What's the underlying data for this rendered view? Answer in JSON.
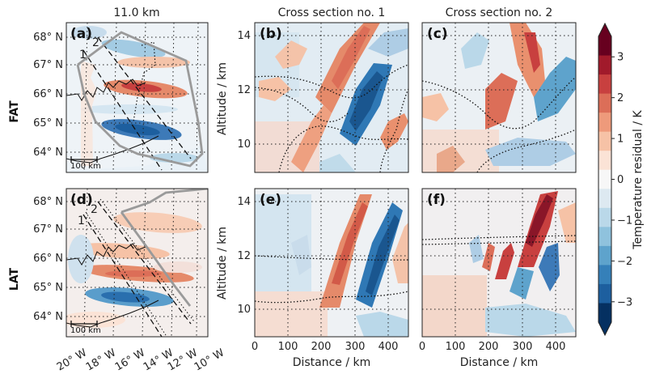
{
  "figure": {
    "top_title": "11.0 km",
    "row_labels": [
      "FAT",
      "LAT"
    ],
    "panel_letters": [
      "(a)",
      "(b)",
      "(c)",
      "(d)",
      "(e)",
      "(f)"
    ],
    "section_labels": [
      "1",
      "2"
    ],
    "scale_bar": "100 km"
  },
  "chart_data": [
    {
      "id": "map",
      "type": "heatmap",
      "lat_ticks": [
        "68° N",
        "67° N",
        "66° N",
        "65° N",
        "64° N"
      ],
      "lon_ticks": [
        "20° W",
        "18° W",
        "16° W",
        "14° W",
        "12° W",
        "10° W"
      ],
      "grid": true
    },
    {
      "id": "cross_section_1",
      "type": "heatmap",
      "title": "Cross section no. 1",
      "xlabel": "Distance / km",
      "ylabel": "Altitude / km",
      "xlim": [
        0,
        460
      ],
      "ylim": [
        9,
        14.4
      ],
      "x_ticks": [
        "0",
        "100",
        "200",
        "300",
        "400"
      ],
      "y_ticks": [
        "10",
        "12",
        "14"
      ],
      "grid": true
    },
    {
      "id": "cross_section_2",
      "type": "heatmap",
      "title": "Cross section no. 2",
      "xlabel": "Distance / km",
      "xlim": [
        0,
        460
      ],
      "ylim": [
        9,
        14.4
      ],
      "x_ticks": [
        "0",
        "100",
        "200",
        "300",
        "400"
      ],
      "grid": true
    },
    {
      "id": "colorbar",
      "type": "heatmap",
      "label": "Temperature residual / K",
      "range": [
        -3.5,
        3.5
      ],
      "ticks": [
        "3",
        "2",
        "1",
        "0",
        "−1",
        "−2",
        "−3"
      ],
      "colors": [
        "#67001f",
        "#a11a2b",
        "#c8403f",
        "#dc6e58",
        "#ee9a7b",
        "#f6c2a6",
        "#fbe3d6",
        "#f7f7f7",
        "#dde9f1",
        "#bad8e9",
        "#8fc2dd",
        "#5ea3cc",
        "#3580b9",
        "#1d5f9f",
        "#053061"
      ]
    }
  ]
}
